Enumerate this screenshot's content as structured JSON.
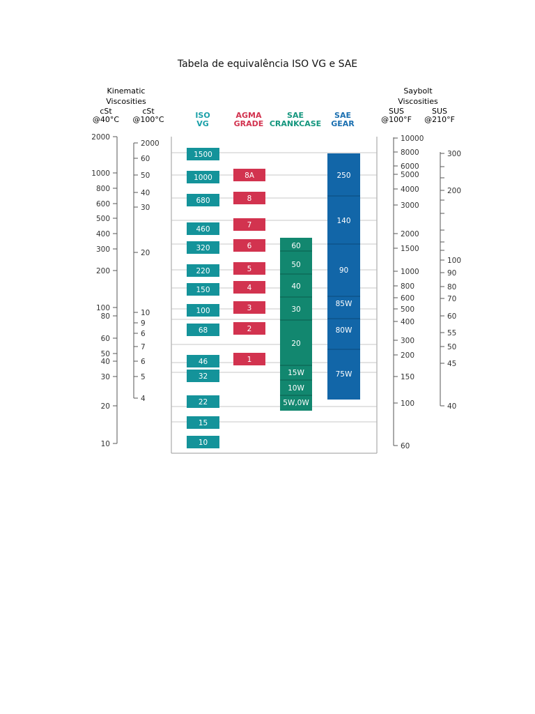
{
  "title": "Tabela de equivalência ISO VG e SAE",
  "headers": {
    "kinematic_line1": "Kinematic",
    "kinematic_line2": "Viscosities",
    "cst40_line1": "cSt",
    "cst40_line2": "@40°C",
    "cst100_line1": "cSt",
    "cst100_line2": "@100°C",
    "iso_line1": "ISO",
    "iso_line2": "VG",
    "agma_line1": "AGMA",
    "agma_line2": "GRADE",
    "crank_line1": "SAE",
    "crank_line2": "CRANKCASE",
    "gear_line1": "SAE",
    "gear_line2": "GEAR",
    "saybolt_line1": "Saybolt",
    "saybolt_line2": "Viscosities",
    "sus100_line1": "SUS",
    "sus100_line2": "@100°F",
    "sus210_line1": "SUS",
    "sus210_line2": "@210°F"
  },
  "colors": {
    "iso": "#14939a",
    "agma": "#d2334f",
    "crankcase": "#12876f",
    "gear": "#1266a8",
    "iso_header": "#1aa0a8",
    "agma_header": "#d2334f",
    "crank_header": "#14967e",
    "gear_header": "#1a6fb0"
  },
  "scales": {
    "cst40": [
      "2000",
      "1000",
      "800",
      "600",
      "500",
      "400",
      "300",
      "200",
      "100",
      "80",
      "60",
      "50",
      "40",
      "30",
      "20",
      "10"
    ],
    "cst100": [
      "2000",
      "60",
      "50",
      "40",
      "30",
      "20",
      "10",
      "9",
      "6",
      "7",
      "6",
      "5",
      "4"
    ],
    "sus100": [
      "10000",
      "8000",
      "6000",
      "5000",
      "4000",
      "3000",
      "2000",
      "1500",
      "1000",
      "800",
      "600",
      "500",
      "400",
      "300",
      "200",
      "150",
      "100",
      "60"
    ],
    "sus210": [
      "300",
      "200",
      "100",
      "90",
      "80",
      "70",
      "60",
      "55",
      "50",
      "45",
      "40"
    ]
  },
  "iso_grades": [
    "1500",
    "1000",
    "680",
    "460",
    "320",
    "220",
    "150",
    "100",
    "68",
    "46",
    "32",
    "22",
    "15",
    "10"
  ],
  "agma_grades": [
    "8A",
    "8",
    "7",
    "6",
    "5",
    "4",
    "3",
    "2",
    "1"
  ],
  "sae_crankcase": [
    "60",
    "50",
    "40",
    "30",
    "20",
    "15W",
    "10W",
    "5W,0W"
  ],
  "sae_gear": [
    "250",
    "140",
    "90",
    "85W",
    "80W",
    "75W"
  ]
}
